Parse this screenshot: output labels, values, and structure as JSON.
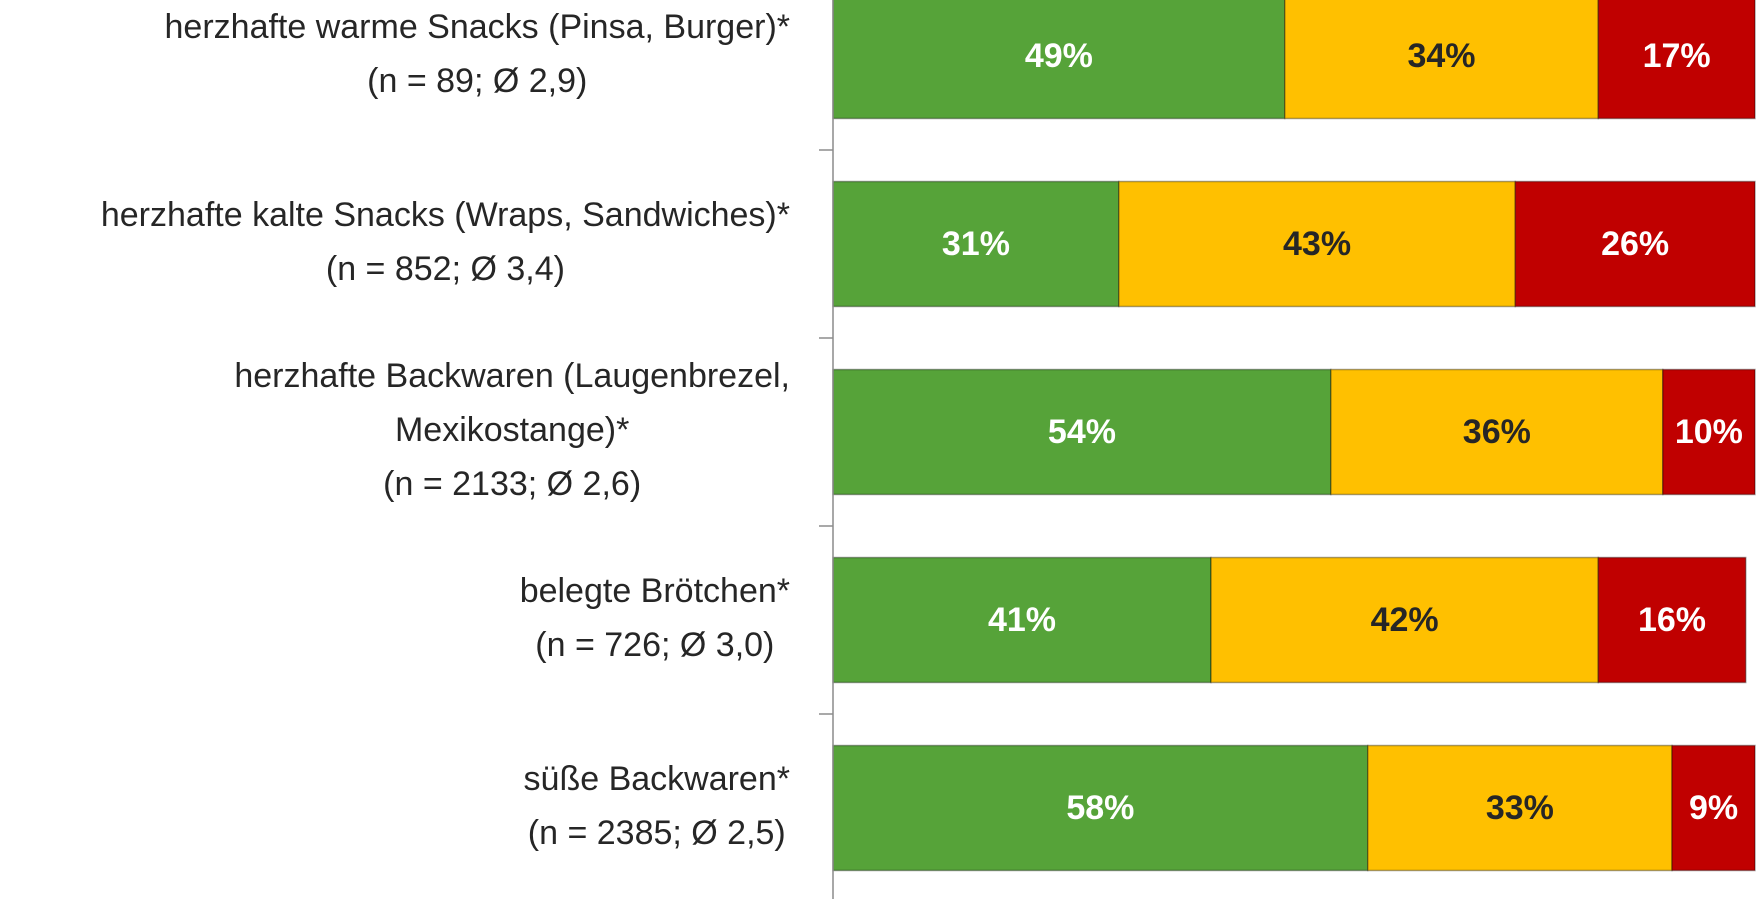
{
  "chart_data": {
    "type": "stacked_barh",
    "categories": [
      [
        "herzhafte warme Snacks (Pinsa, Burger)*",
        "(n = 89; Ø 2,9)"
      ],
      [
        "herzhafte kalte Snacks (Wraps, Sandwiches)*",
        "(n = 852; Ø 3,4)"
      ],
      [
        "herzhafte Backwaren (Laugenbrezel,",
        "Mexikostange)*",
        "(n = 2133; Ø 2,6)"
      ],
      [
        "belegte Brötchen*",
        "(n = 726; Ø 3,0)"
      ],
      [
        "süße Backwaren*",
        "(n = 2385; Ø 2,5)"
      ]
    ],
    "series": [
      {
        "color": "#56a339",
        "label_color": "#ffffff",
        "values": [
          49,
          31,
          54,
          41,
          58
        ],
        "value_labels": [
          "49%",
          "31%",
          "54%",
          "41%",
          "58%"
        ]
      },
      {
        "color": "#ffc000",
        "label_color": "#262626",
        "values": [
          34,
          43,
          36,
          42,
          33
        ],
        "value_labels": [
          "34%",
          "43%",
          "36%",
          "42%",
          "33%"
        ]
      },
      {
        "color": "#c00000",
        "label_color": "#ffffff",
        "values": [
          17,
          26,
          10,
          16,
          9
        ],
        "value_labels": [
          "17%",
          "26%",
          "10%",
          "16%",
          "9%"
        ]
      }
    ],
    "xlim": [
      0,
      100
    ]
  }
}
